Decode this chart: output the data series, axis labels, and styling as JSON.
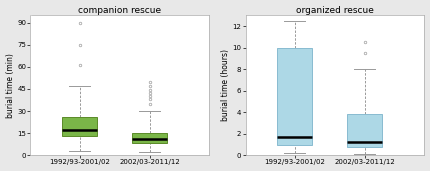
{
  "left_title": "companion rescue",
  "right_title": "organized rescue",
  "left_ylabel": "burial time (min)",
  "right_ylabel": "burial time (hours)",
  "left_xlabel1": "1992/93-2001/02",
  "left_xlabel2": "2002/03-2011/12",
  "right_xlabel1": "1992/93-2001/02",
  "right_xlabel2": "2002/03-2011/12",
  "left_ylim": [
    0,
    95
  ],
  "left_yticks": [
    0,
    15,
    30,
    45,
    60,
    75,
    90
  ],
  "right_ylim": [
    0,
    13
  ],
  "right_yticks": [
    0,
    2,
    4,
    6,
    8,
    10,
    12
  ],
  "left_box1": {
    "q1": 13,
    "median": 17,
    "q3": 26,
    "whisker_low": 3,
    "whisker_high": 47,
    "outliers": [
      61,
      75,
      90
    ]
  },
  "left_box2": {
    "q1": 8,
    "median": 11,
    "q3": 15,
    "whisker_low": 2,
    "whisker_high": 30,
    "outliers": [
      35,
      38,
      40,
      42,
      44,
      47,
      50
    ]
  },
  "right_box1": {
    "q1": 1.0,
    "median": 1.7,
    "q3": 10.0,
    "whisker_low": 0.2,
    "whisker_high": 12.5,
    "outliers": []
  },
  "right_box2": {
    "q1": 0.8,
    "median": 1.2,
    "q3": 3.8,
    "whisker_low": 0.1,
    "whisker_high": 8.0,
    "outliers": [
      9.5,
      10.5
    ]
  },
  "green_color": "#7ab648",
  "green_edge": "#5a8a28",
  "blue_color": "#add8e6",
  "blue_edge": "#88bbd0",
  "median_color": "#000000",
  "whisker_color": "#999999",
  "outlier_color": "#aaaaaa",
  "bg_color": "#e8e8e8",
  "title_fontsize": 6.5,
  "label_fontsize": 5.5,
  "tick_fontsize": 5.0
}
